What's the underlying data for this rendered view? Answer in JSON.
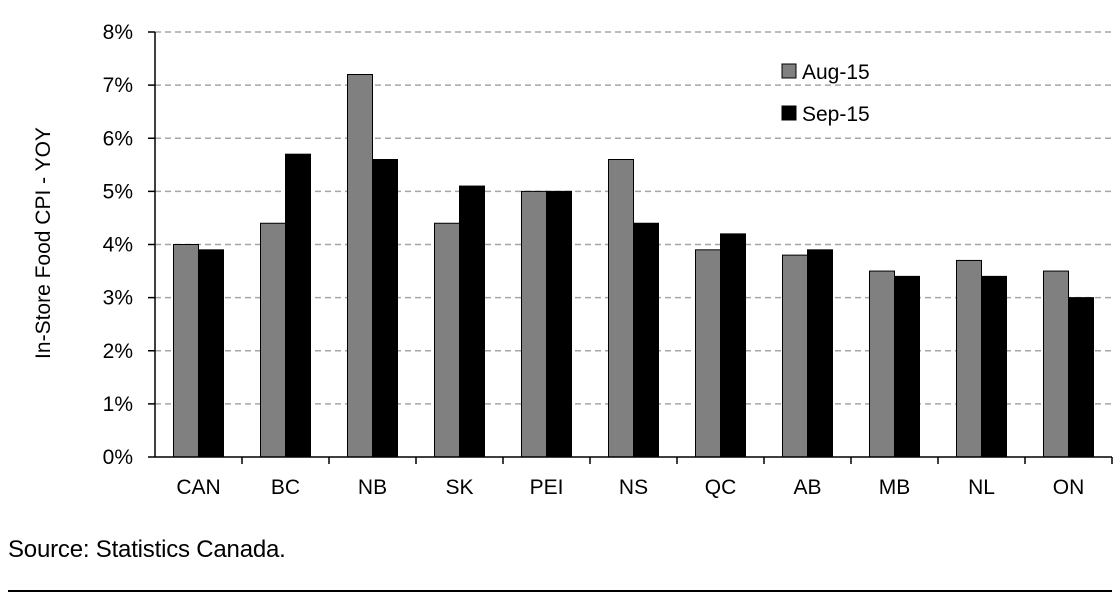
{
  "chart_data": {
    "type": "bar",
    "ylabel": "In-Store Food CPI - YOY",
    "ylim": [
      0,
      8
    ],
    "yticks": [
      "0%",
      "1%",
      "2%",
      "3%",
      "4%",
      "5%",
      "6%",
      "7%",
      "8%"
    ],
    "grid": true,
    "legend_position": "top-right",
    "categories": [
      "CAN",
      "BC",
      "NB",
      "SK",
      "PEI",
      "NS",
      "QC",
      "AB",
      "MB",
      "NL",
      "ON"
    ],
    "series": [
      {
        "name": "Aug-15",
        "color": "#808080",
        "values": [
          4.0,
          4.4,
          7.2,
          4.4,
          5.0,
          5.6,
          3.9,
          3.8,
          3.5,
          3.7,
          3.5
        ]
      },
      {
        "name": "Sep-15",
        "color": "#000000",
        "values": [
          3.9,
          5.7,
          5.6,
          5.1,
          5.0,
          4.4,
          4.2,
          3.9,
          3.4,
          3.4,
          3.0
        ]
      }
    ]
  },
  "source_note": "Source: Statistics Canada."
}
